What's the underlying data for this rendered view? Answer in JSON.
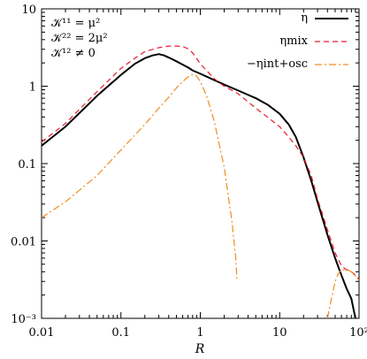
{
  "chart_data": {
    "type": "line",
    "x_scale": "log",
    "y_scale": "log",
    "xlim": [
      0.01,
      100
    ],
    "ylim": [
      0.001,
      10
    ],
    "xlabel": "R",
    "ylabel": "",
    "x_ticks": [
      {
        "value": 0.01,
        "label": "0.01"
      },
      {
        "value": 0.1,
        "label": "0.1"
      },
      {
        "value": 1,
        "label": "1"
      },
      {
        "value": 10,
        "label": "10"
      },
      {
        "value": 100,
        "label": "10²"
      }
    ],
    "y_ticks": [
      {
        "value": 0.001,
        "label": "10⁻³"
      },
      {
        "value": 0.01,
        "label": "0.01"
      },
      {
        "value": 0.1,
        "label": "0.1"
      },
      {
        "value": 1,
        "label": "1"
      },
      {
        "value": 10,
        "label": "10"
      }
    ],
    "annotations": [
      "𝒦¹¹ = μ²",
      "𝒦²² = 2μ²",
      "𝒦¹² ≠ 0"
    ],
    "legend_position": "top-right",
    "grid": false,
    "series": [
      {
        "name": "η",
        "color": "#000000",
        "style": "solid",
        "x": [
          0.01,
          0.02,
          0.05,
          0.1,
          0.15,
          0.2,
          0.25,
          0.3,
          0.35,
          0.4,
          0.5,
          0.6,
          0.7,
          0.8,
          1.0,
          1.5,
          2,
          3,
          5,
          7,
          10,
          13,
          16,
          20,
          25,
          30,
          40,
          50,
          60,
          70,
          80,
          90
        ],
        "y": [
          0.17,
          0.3,
          0.75,
          1.4,
          1.95,
          2.3,
          2.5,
          2.6,
          2.5,
          2.35,
          2.1,
          1.9,
          1.75,
          1.6,
          1.45,
          1.2,
          1.05,
          0.88,
          0.7,
          0.58,
          0.44,
          0.32,
          0.22,
          0.12,
          0.06,
          0.032,
          0.012,
          0.006,
          0.0036,
          0.0024,
          0.0018,
          0.001
        ]
      },
      {
        "name": "ηmix",
        "color": "#e8182c",
        "style": "dashed",
        "x": [
          0.01,
          0.02,
          0.05,
          0.1,
          0.15,
          0.2,
          0.3,
          0.4,
          0.5,
          0.6,
          0.7,
          0.8,
          1.0,
          1.5,
          2,
          3,
          5,
          7,
          10,
          13,
          16,
          20,
          25,
          30,
          40,
          50,
          60,
          70,
          80,
          90,
          100
        ],
        "y": [
          0.19,
          0.33,
          0.85,
          1.7,
          2.3,
          2.8,
          3.15,
          3.3,
          3.3,
          3.25,
          3.05,
          2.7,
          1.95,
          1.25,
          1.0,
          0.8,
          0.52,
          0.4,
          0.3,
          0.22,
          0.17,
          0.12,
          0.07,
          0.035,
          0.014,
          0.007,
          0.0048,
          0.0042,
          0.004,
          0.0036,
          0.0032
        ]
      },
      {
        "name": "−ηint+osc",
        "color": "#f08c20",
        "style": "dashdot",
        "segments": [
          {
            "x": [
              0.01,
              0.02,
              0.05,
              0.1,
              0.2,
              0.3,
              0.4,
              0.5,
              0.6,
              0.7,
              0.8,
              0.9,
              1.0,
              1.2,
              1.5,
              2.0,
              2.5,
              2.8,
              2.9
            ],
            "y": [
              0.02,
              0.032,
              0.07,
              0.15,
              0.32,
              0.52,
              0.72,
              0.95,
              1.15,
              1.32,
              1.42,
              1.35,
              1.15,
              0.75,
              0.35,
              0.09,
              0.018,
              0.006,
              0.003
            ]
          },
          {
            "x": [
              40,
              45,
              50,
              55,
              60,
              70,
              80,
              90,
              100
            ],
            "y": [
              0.001,
              0.0018,
              0.003,
              0.0038,
              0.0042,
              0.0043,
              0.004,
              0.0035,
              0.0031
            ]
          }
        ]
      }
    ]
  }
}
